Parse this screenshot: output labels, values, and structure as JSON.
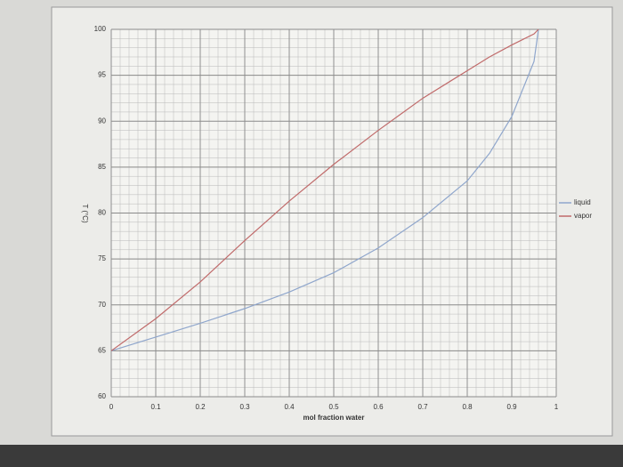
{
  "chart_data": {
    "type": "line",
    "x_label": "mol fraction water",
    "y_label": "T (°C)",
    "x": [
      0,
      0.1,
      0.2,
      0.3,
      0.4,
      0.5,
      0.6,
      0.7,
      0.8,
      0.85,
      0.9,
      0.95,
      0.96
    ],
    "series": [
      {
        "name": "liquid",
        "color": "#8fa6cc",
        "values": [
          65,
          66.5,
          68,
          69.6,
          71.4,
          73.5,
          76.2,
          79.5,
          83.5,
          86.5,
          90.5,
          96.5,
          100
        ]
      },
      {
        "name": "vapor",
        "color": "#c06a6a",
        "values": [
          65,
          68.5,
          72.5,
          77,
          81.3,
          85.3,
          89,
          92.5,
          95.5,
          97,
          98.3,
          99.5,
          100
        ]
      }
    ],
    "xlim": [
      0,
      1
    ],
    "ylim": [
      60,
      100
    ],
    "xticks": [
      0,
      0.1,
      0.2,
      0.3,
      0.4,
      0.5,
      0.6,
      0.7,
      0.8,
      0.9,
      1
    ],
    "yticks": [
      60,
      65,
      70,
      75,
      80,
      85,
      90,
      95,
      100
    ],
    "grid": true,
    "legend": "right"
  }
}
